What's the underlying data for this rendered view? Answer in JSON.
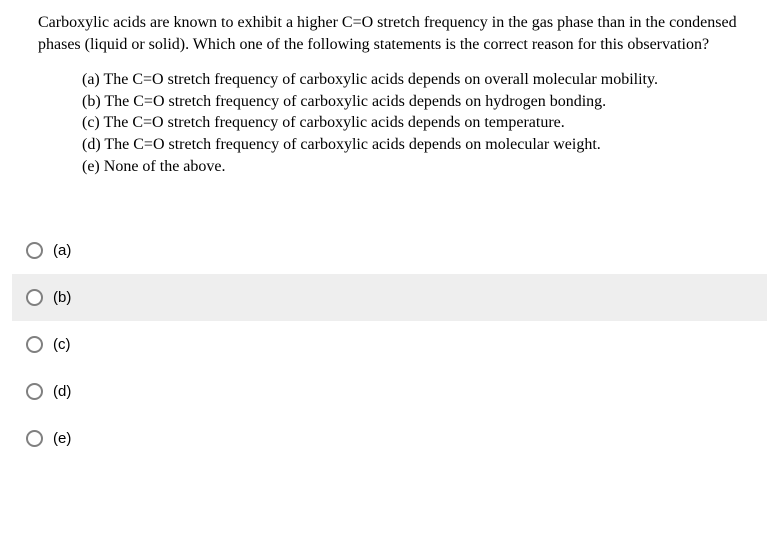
{
  "question": {
    "text": "Carboxylic acids are known to exhibit a higher C=O stretch frequency in the gas phase than in the condensed phases (liquid or solid).  Which one of the following statements is the correct reason for this observation?",
    "options": [
      "(a) The C=O stretch frequency of carboxylic acids depends on overall molecular mobility.",
      "(b) The C=O stretch frequency of carboxylic acids depends on hydrogen bonding.",
      "(c) The C=O stretch frequency of carboxylic acids depends on temperature.",
      "(d) The C=O stretch frequency of carboxylic acids depends on molecular weight.",
      "(e) None of the above."
    ]
  },
  "answers": [
    {
      "label": "(a)",
      "highlighted": false
    },
    {
      "label": "(b)",
      "highlighted": true
    },
    {
      "label": "(c)",
      "highlighted": false
    },
    {
      "label": "(d)",
      "highlighted": false
    },
    {
      "label": "(e)",
      "highlighted": false
    }
  ],
  "colors": {
    "background": "#ffffff",
    "text": "#000000",
    "highlight_bg": "#eeeeee",
    "radio_border": "#808080"
  }
}
